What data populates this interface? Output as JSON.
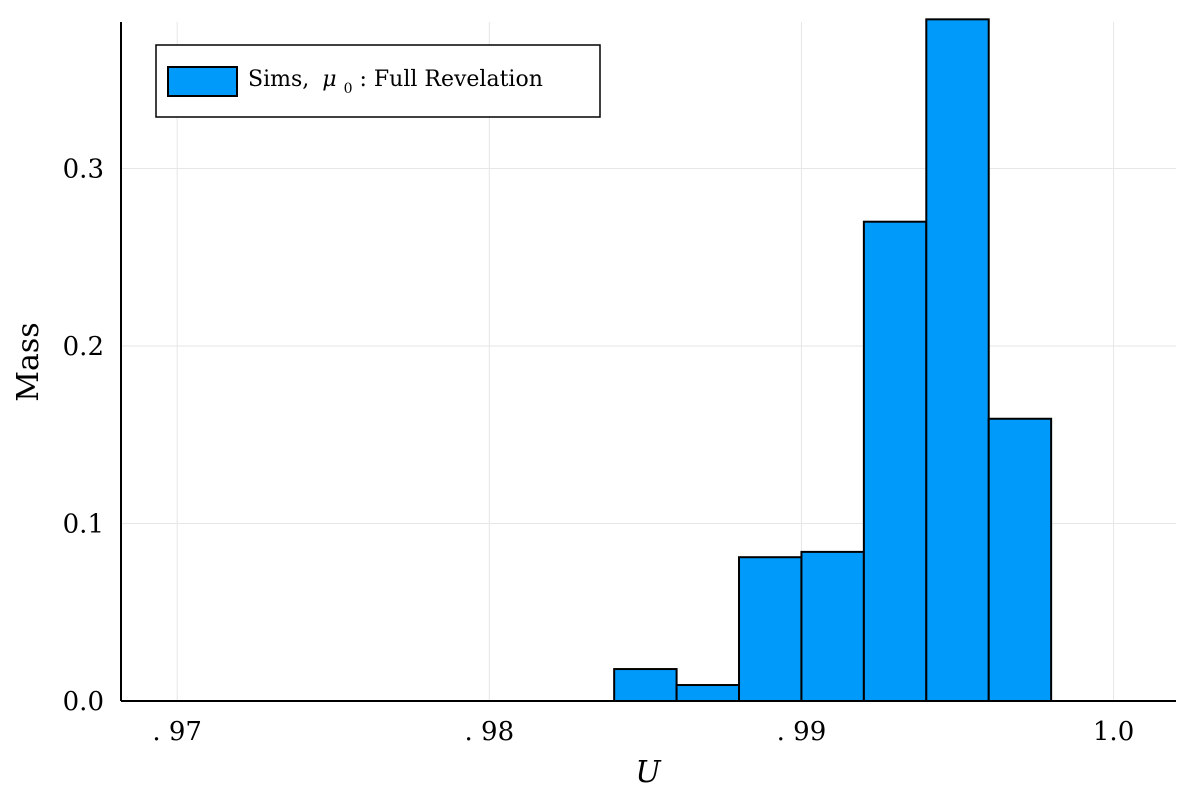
{
  "chart_data": {
    "type": "bar",
    "title": "",
    "xlabel": "U",
    "ylabel": "Mass",
    "xlim": [
      0.9682,
      1.002
    ],
    "ylim": [
      0,
      0.3825
    ],
    "x_ticks": [
      0.97,
      0.98,
      0.99,
      1.0
    ],
    "x_tick_labels": [
      ". 97",
      ". 98",
      ". 99",
      "1.0"
    ],
    "y_ticks": [
      0.0,
      0.1,
      0.2,
      0.3
    ],
    "y_tick_labels": [
      "0.0",
      "0.1",
      "0.2",
      "0.3"
    ],
    "grid": true,
    "legend_position": "top-left",
    "bin_edges": [
      0.984,
      0.986,
      0.988,
      0.99,
      0.992,
      0.994,
      0.996,
      0.998
    ],
    "values": [
      0.018,
      0.009,
      0.081,
      0.084,
      0.27,
      0.384,
      0.159
    ],
    "series": [
      {
        "name": "Sims, μ₀ : Full Revelation",
        "color": "#009AFA"
      }
    ]
  },
  "legend": {
    "label_prefix": "Sims, ",
    "label_mu": "μ",
    "label_sub": "0",
    "label_suffix": " : Full Revelation"
  },
  "colors": {
    "bar": "#009AFA",
    "edge": "#000000",
    "grid": "#e6e6e6"
  }
}
